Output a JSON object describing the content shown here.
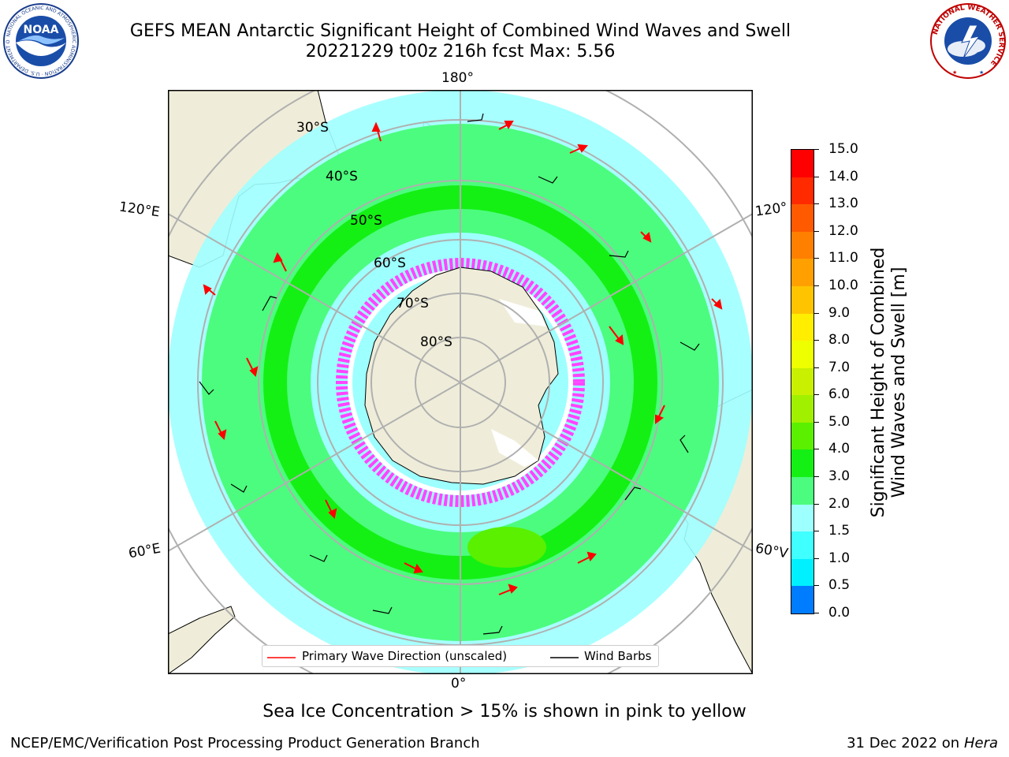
{
  "title": {
    "line1": "GEFS MEAN Antarctic Significant Height of Combined Wind Waves and Swell",
    "line2": "20221229 t00z 216h fcst   Max: 5.56"
  },
  "map": {
    "projection": "south-polar-stereographic",
    "longitude_labels": [
      "180°",
      "0°",
      "120°E",
      "60°E",
      "120°",
      "60°V"
    ],
    "latitude_labels": [
      "30°S",
      "40°S",
      "50°S",
      "60°S",
      "70°S",
      "80°S"
    ],
    "colors": {
      "land": "#efedd9",
      "ocean_low": "#9effff",
      "ocean_mid": "#4cfc7e",
      "ocean_high": "#14f014",
      "ice_pink": "#ff44ff",
      "arrow": "#ff0000",
      "barb": "#000000",
      "grid": "#b0b0b0"
    }
  },
  "legend": {
    "wave_label": "Primary Wave Direction (unscaled)",
    "barb_label": "Wind Barbs"
  },
  "colorbar": {
    "title_line1": "Significant Height of Combined",
    "title_line2": "Wind Waves and Swell [m]",
    "ticks": [
      "15.0",
      "14.0",
      "13.0",
      "12.0",
      "11.0",
      "10.0",
      "9.0",
      "8.0",
      "7.0",
      "6.0",
      "5.0",
      "4.0",
      "3.0",
      "2.0",
      "1.5",
      "1.0",
      "0.5",
      "0.0"
    ],
    "bands": [
      "#ff0000",
      "#ff2a00",
      "#ff5a00",
      "#ff7f00",
      "#ffa000",
      "#ffc400",
      "#ffee00",
      "#eeff00",
      "#c8f000",
      "#a0f000",
      "#5af000",
      "#14f014",
      "#4cfc7e",
      "#9effff",
      "#40ffff",
      "#00f0ff",
      "#007cff",
      "#0000ff"
    ]
  },
  "logos": {
    "noaa_text": "NOAA",
    "noaa_ring": "NATIONAL OCEANIC AND ATMOSPHERIC ADMINISTRATION · U.S. DEPARTMENT OF COMMERCE",
    "nws_ring": "NATIONAL WEATHER SERVICE"
  },
  "note": "Sea Ice Concentration > 15% is shown in pink to yellow",
  "footer": {
    "left": "NCEP/EMC/Verification Post Processing Product Generation Branch",
    "date": "31 Dec 2022 on",
    "machine": "Hera"
  }
}
